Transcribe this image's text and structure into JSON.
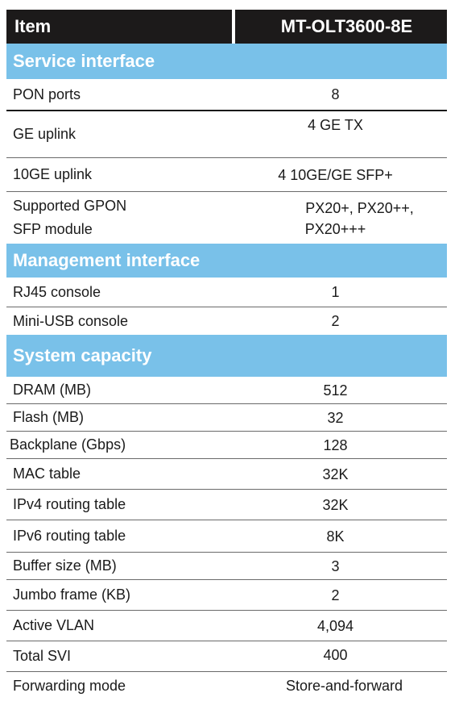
{
  "header": {
    "item": "Item",
    "model": "MT-OLT3600-8E"
  },
  "sections": [
    {
      "title": "Service interface",
      "rows": [
        {
          "label": "PON ports",
          "value": "8"
        },
        {
          "label": "GE uplink",
          "value": "4 GE TX"
        },
        {
          "label": "10GE uplink",
          "value": "4 10GE/GE SFP+"
        },
        {
          "label_lines": [
            "Supported GPON",
            "SFP module"
          ],
          "value_lines": [
            "PX20+, PX20++,",
            "PX20+++"
          ]
        }
      ]
    },
    {
      "title": "Management interface",
      "rows": [
        {
          "label": "RJ45 console",
          "value": "1"
        },
        {
          "label": "Mini-USB console",
          "value": "2"
        }
      ]
    },
    {
      "title": "System capacity",
      "rows": [
        {
          "label": "DRAM (MB)",
          "value": "512"
        },
        {
          "label": "Flash (MB)",
          "value": "32"
        },
        {
          "label": "Backplane (Gbps)",
          "value": "128"
        },
        {
          "label": "MAC table",
          "value": "32K"
        },
        {
          "label": "IPv4 routing table",
          "value": "32K"
        },
        {
          "label": "IPv6 routing table",
          "value": "8K"
        },
        {
          "label": "Buffer size (MB)",
          "value": "3"
        },
        {
          "label": "Jumbo frame (KB)",
          "value": "2"
        },
        {
          "label": "Active VLAN",
          "value": "4,094"
        },
        {
          "label": "Total SVI",
          "value": "400"
        },
        {
          "label": "Forwarding mode",
          "value": "Store-and-forward"
        }
      ]
    }
  ],
  "colors": {
    "header_bg": "#1c1a1a",
    "section_bg": "#79c1e9"
  }
}
